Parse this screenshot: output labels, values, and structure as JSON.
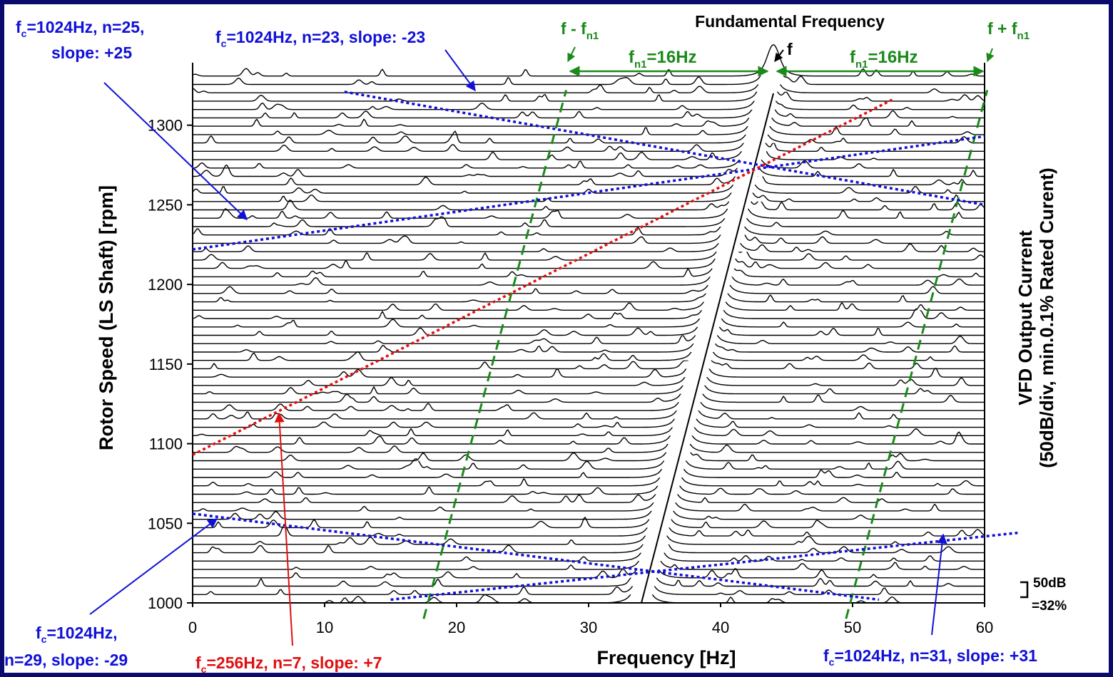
{
  "chart_data": {
    "type": "waterfall",
    "xlabel": "Frequency [Hz]",
    "ylabel": "Rotor Speed (LS Shaft) [rpm]",
    "y2label_line1": "VFD Output Current",
    "y2label_line2": "(50dB/div, min.0.1% Rated Curent)",
    "xlim": [
      0,
      60
    ],
    "ylim": [
      1000,
      1320
    ],
    "xticks": [
      "0",
      "10",
      "20",
      "30",
      "40",
      "50",
      "60"
    ],
    "yticks": [
      "1000",
      "1050",
      "1100",
      "1150",
      "1200",
      "1250",
      "1300"
    ],
    "scale_bar": {
      "line1": "50dB",
      "line2": "=32%"
    },
    "fundamental": {
      "label": "Fundamental Frequency",
      "marker": "f",
      "points": [
        [
          34.0,
          1000
        ],
        [
          44.0,
          1320
        ]
      ]
    },
    "sidebands": {
      "lower_label_main": "f - f",
      "lower_label_sub": "n1",
      "upper_label_main": "f + f",
      "upper_label_sub": "n1",
      "spacing_main": "f",
      "spacing_sub": "n1",
      "spacing_value": "=16Hz",
      "lower_points": [
        [
          17.5,
          990
        ],
        [
          28.3,
          1322
        ]
      ],
      "upper_points": [
        [
          49.5,
          990
        ],
        [
          60.2,
          1322
        ]
      ]
    },
    "color_lines": [
      {
        "color": "#1010d8",
        "style": "dotted",
        "points": [
          [
            0,
            1222
          ],
          [
            60,
            1293
          ]
        ]
      },
      {
        "color": "#1010d8",
        "style": "dotted",
        "points": [
          [
            11.5,
            1321
          ],
          [
            60,
            1250
          ]
        ]
      },
      {
        "color": "#1010d8",
        "style": "dotted",
        "points": [
          [
            0,
            1056
          ],
          [
            52,
            1002
          ]
        ]
      },
      {
        "color": "#1010d8",
        "style": "dotted",
        "points": [
          [
            15,
            1002
          ],
          [
            62.5,
            1044
          ]
        ]
      },
      {
        "color": "#e01010",
        "style": "dotted",
        "points": [
          [
            0,
            1093
          ],
          [
            53,
            1316
          ]
        ]
      }
    ],
    "annotations": [
      {
        "color": "#1010d8",
        "main": "f",
        "sub": "c",
        "rest": "=1024Hz, n=25,",
        "line2": "slope: +25"
      },
      {
        "color": "#1010d8",
        "main": "f",
        "sub": "c",
        "rest": "=1024Hz, n=23, slope: -23",
        "line2": ""
      },
      {
        "color": "#1010d8",
        "main": "f",
        "sub": "c",
        "rest": "=1024Hz,",
        "line2": "n=29, slope: -29"
      },
      {
        "color": "#e01010",
        "main": "f",
        "sub": "c",
        "rest": "=256Hz, n=7, slope: +7",
        "line2": ""
      },
      {
        "color": "#1010d8",
        "main": "f",
        "sub": "c",
        "rest": "=1024Hz, n=31, slope: +31",
        "line2": ""
      }
    ],
    "colors": {
      "green": "#1a8a1a",
      "blue": "#1010d8",
      "red": "#e01010",
      "frame": "#0b0b6e"
    },
    "grid": false
  }
}
